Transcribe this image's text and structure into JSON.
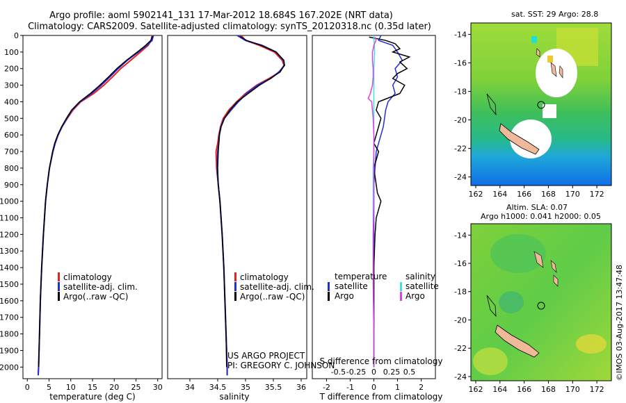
{
  "header": {
    "line1": "Argo profile: aoml 5902141_131 17-Mar-2012 18.684S 167.202E (NRT data)",
    "line2": "Climatology: CARS2009. Satellite-adjusted climatology: synTS_20120318.nc (0.35d later)"
  },
  "colors": {
    "red": "#e8201e",
    "blue": "#1f2ed8",
    "black": "#000000",
    "cyan": "#3fe0e0",
    "magenta": "#e040e0"
  },
  "depth_axis": {
    "range": [
      0,
      2070
    ],
    "ticks": [
      0,
      100,
      200,
      300,
      400,
      500,
      600,
      700,
      800,
      900,
      1000,
      1100,
      1200,
      1300,
      1400,
      1500,
      1600,
      1700,
      1800,
      1900,
      2000
    ]
  },
  "panels": {
    "temperature": {
      "xlabel": "temperature (deg C)",
      "xrange": [
        -1,
        31
      ],
      "xticks": [
        0,
        5,
        10,
        15,
        20,
        25,
        30
      ],
      "legend": [
        "climatology",
        "satellite-adj. clim.",
        "Argo(..raw -QC)"
      ]
    },
    "salinity": {
      "xlabel": "salinity",
      "xrange": [
        33.6,
        36.1
      ],
      "xticks": [
        34,
        34.5,
        35,
        35.5,
        36
      ],
      "legend": [
        "climatology",
        "satellite-adj. clim.",
        "Argo(..raw -QC)"
      ],
      "credit1": "US ARGO PROJECT",
      "credit2": "PI: GREGORY C. JOHNSON"
    },
    "difference": {
      "xlabel_t": "T difference from climatology",
      "xlabel_s": "S difference from climatology",
      "xrange_t": [
        -2.6,
        2.6
      ],
      "xticks_t": [
        -2,
        -1,
        0,
        1,
        2
      ],
      "xticks_s": [
        "-0.5",
        "-0.25",
        "0",
        "0.25",
        "0.5"
      ],
      "legend_t_title": "temperature",
      "legend_s_title": "salinity",
      "legend_t": [
        "satellite",
        "Argo"
      ],
      "legend_s": [
        "satellite",
        "Argo"
      ]
    }
  },
  "map_sst": {
    "title": "sat. SST: 29 Argo: 28.8",
    "yticks": [
      -14,
      -16,
      -18,
      -20,
      -22,
      -24
    ],
    "xticks": [
      162,
      164,
      166,
      168,
      170,
      172
    ]
  },
  "map_sla": {
    "title1": "Altim. SLA: 0.07",
    "title2": "Argo h1000: 0.041 h2000: 0.05",
    "yticks": [
      -14,
      -16,
      -18,
      -20,
      -22,
      -24
    ],
    "xticks": [
      162,
      164,
      166,
      168,
      170,
      172
    ]
  },
  "footer_stamp": "©IMOS 03-Aug-2017 13:47:48",
  "chart_data": {
    "type": "line",
    "y_variable": "depth (m)",
    "temperature_series": [
      {
        "name": "climatology",
        "depth": [
          0,
          30,
          60,
          100,
          150,
          200,
          250,
          300,
          350,
          400,
          450,
          500,
          550,
          600,
          650,
          700,
          800,
          900,
          1000,
          1200,
          1400,
          1600,
          1800,
          2000,
          2050
        ],
        "values": [
          28.7,
          28.5,
          27.8,
          26.0,
          23.8,
          21.5,
          19.6,
          17.6,
          15.3,
          12.3,
          10.5,
          9.2,
          8.0,
          7.1,
          6.4,
          5.9,
          5.1,
          4.6,
          4.2,
          3.7,
          3.3,
          3.0,
          2.8,
          2.6,
          2.5
        ]
      },
      {
        "name": "satellite-adj. clim.",
        "depth": [
          0,
          30,
          60,
          100,
          150,
          200,
          250,
          300,
          350,
          400,
          450,
          500,
          550,
          600,
          650,
          700,
          800,
          900,
          1000,
          1200,
          1400,
          1600,
          1800,
          2000,
          2050
        ],
        "values": [
          29.0,
          28.7,
          27.5,
          25.5,
          23.0,
          20.9,
          19.0,
          17.0,
          14.8,
          12.1,
          10.3,
          9.1,
          8.0,
          7.1,
          6.4,
          5.9,
          5.1,
          4.6,
          4.2,
          3.7,
          3.3,
          3.0,
          2.8,
          2.6,
          2.5
        ]
      },
      {
        "name": "Argo(..raw -QC)",
        "depth": [
          5,
          30,
          60,
          100,
          150,
          200,
          250,
          300,
          350,
          400,
          450,
          500,
          550,
          600,
          650,
          700,
          800,
          900,
          1000,
          1200,
          1400,
          1600,
          1800,
          2000
        ],
        "values": [
          28.8,
          28.4,
          27.2,
          25.3,
          22.8,
          20.6,
          18.7,
          16.7,
          14.5,
          12.0,
          10.2,
          9.0,
          7.9,
          7.0,
          6.3,
          5.8,
          5.1,
          4.6,
          4.2,
          3.7,
          3.3,
          3.0,
          2.8,
          2.6
        ]
      }
    ],
    "salinity_series": [
      {
        "name": "climatology",
        "depth": [
          0,
          30,
          60,
          100,
          150,
          180,
          220,
          260,
          300,
          350,
          400,
          450,
          500,
          550,
          600,
          650,
          700,
          800,
          900,
          1000,
          1200,
          1400,
          1600,
          1800,
          2000,
          2050
        ],
        "values": [
          34.92,
          35.0,
          35.25,
          35.52,
          35.66,
          35.69,
          35.62,
          35.42,
          35.2,
          35.0,
          34.84,
          34.7,
          34.6,
          34.55,
          34.52,
          34.5,
          34.47,
          34.48,
          34.51,
          34.54,
          34.58,
          34.61,
          34.63,
          34.65,
          34.67,
          34.67
        ]
      },
      {
        "name": "satellite-adj. clim.",
        "depth": [
          0,
          30,
          60,
          100,
          150,
          180,
          220,
          260,
          300,
          350,
          400,
          450,
          500,
          550,
          600,
          650,
          700,
          800,
          900,
          1000,
          1200,
          1400,
          1600,
          1800,
          2000,
          2050
        ],
        "values": [
          34.85,
          35.0,
          35.3,
          35.55,
          35.68,
          35.7,
          35.6,
          35.45,
          35.22,
          35.02,
          34.87,
          34.74,
          34.62,
          34.56,
          34.53,
          34.52,
          34.5,
          34.49,
          34.51,
          34.54,
          34.58,
          34.61,
          34.63,
          34.65,
          34.67,
          34.67
        ]
      },
      {
        "name": "Argo(..raw -QC)",
        "depth": [
          5,
          30,
          60,
          100,
          150,
          180,
          220,
          260,
          300,
          350,
          400,
          450,
          500,
          550,
          600,
          650,
          700,
          800,
          900,
          1000,
          1200,
          1400,
          1600,
          1800,
          2000
        ],
        "values": [
          34.9,
          35.02,
          35.28,
          35.55,
          35.69,
          35.7,
          35.62,
          35.45,
          35.25,
          35.05,
          34.85,
          34.72,
          34.62,
          34.56,
          34.53,
          34.52,
          34.51,
          34.5,
          34.51,
          34.54,
          34.58,
          34.61,
          34.63,
          34.65,
          34.66
        ]
      }
    ],
    "difference_series": [
      {
        "name": "temperature satellite",
        "axis": "T",
        "depth": [
          0,
          30,
          60,
          100,
          150,
          200,
          250,
          300,
          350,
          400,
          450,
          500,
          550,
          600,
          700,
          800,
          900,
          1000,
          1200,
          1500,
          1800,
          2000
        ],
        "values": [
          0.3,
          0.2,
          0.8,
          1.0,
          1.2,
          0.9,
          1.0,
          0.8,
          0.9,
          0.6,
          0.5,
          0.45,
          0.4,
          0.3,
          0.1,
          0.05,
          0.0,
          0.0,
          0.0,
          0.0,
          0.0,
          0.0
        ]
      },
      {
        "name": "temperature Argo",
        "axis": "T",
        "depth": [
          10,
          30,
          50,
          80,
          100,
          130,
          160,
          200,
          230,
          260,
          300,
          350,
          400,
          450,
          500,
          550,
          600,
          650,
          700,
          750,
          800,
          850,
          900,
          950,
          1000,
          1050,
          1100,
          1200,
          1400,
          1600,
          1800,
          2000
        ],
        "values": [
          -0.2,
          0.5,
          0.9,
          1.1,
          0.8,
          1.5,
          1.1,
          1.4,
          1.0,
          0.8,
          1.3,
          1.1,
          0.2,
          0.1,
          0.3,
          0.2,
          0.1,
          0.0,
          0.2,
          0.1,
          0.0,
          0.05,
          0.1,
          0.15,
          0.3,
          0.2,
          0.1,
          0.05,
          0.0,
          0.0,
          0.0,
          0.0
        ]
      },
      {
        "name": "salinity satellite",
        "axis": "S",
        "depth": [
          0,
          100,
          200,
          300,
          400,
          500,
          600,
          700,
          800,
          1000,
          1200,
          1500,
          1800,
          2000
        ],
        "values": [
          0.0,
          0.01,
          0.0,
          0.0,
          0.0,
          0.0,
          0.0,
          0.0,
          -0.01,
          -0.01,
          -0.01,
          -0.01,
          0.0,
          0.0
        ]
      },
      {
        "name": "salinity Argo",
        "axis": "S",
        "depth": [
          10,
          30,
          60,
          100,
          150,
          200,
          250,
          300,
          350,
          380,
          400,
          450,
          500,
          600,
          800,
          1000,
          1200,
          1500,
          1800,
          2000
        ],
        "values": [
          0.02,
          0.03,
          0.0,
          -0.02,
          -0.02,
          -0.01,
          -0.01,
          -0.02,
          -0.05,
          -0.08,
          -0.03,
          -0.02,
          -0.01,
          0.0,
          0.0,
          0.0,
          -0.01,
          -0.01,
          0.0,
          0.0
        ]
      }
    ]
  }
}
